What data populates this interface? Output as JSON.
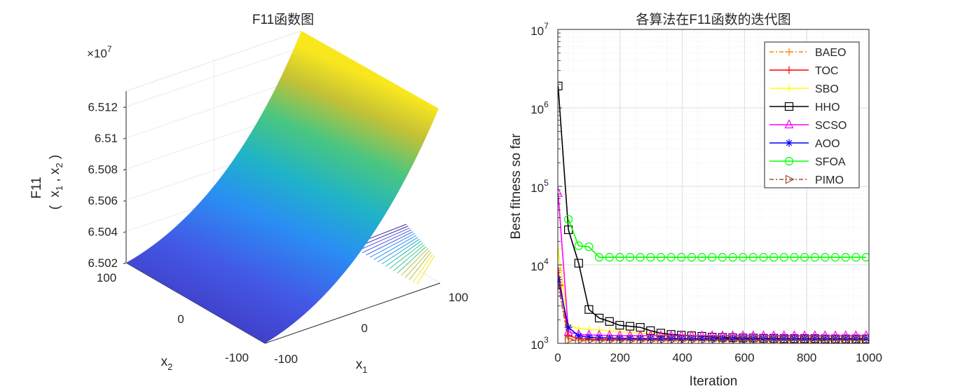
{
  "chart_data": [
    {
      "type": "surface",
      "title": "F11函数图",
      "xlabel": "x",
      "xlabel_sub": "1",
      "ylabel": "x",
      "ylabel_sub": "2",
      "zlabel_line1": "F11",
      "zlabel_line2": "( x , x )",
      "zlabel_sub1": "1",
      "zlabel_sub2": "2",
      "exponent_label": "×10",
      "exponent_power": "7",
      "x_ticks": [
        "-100",
        "0",
        "100"
      ],
      "y_ticks": [
        "-100",
        "0",
        "100"
      ],
      "z_ticks": [
        "6.502",
        "6.504",
        "6.506",
        "6.508",
        "6.51",
        "6.512"
      ],
      "xlim": [
        -100,
        100
      ],
      "ylim": [
        -100,
        100
      ],
      "zlim": [
        6.502,
        6.513
      ],
      "colormap": [
        "#3e26a8",
        "#4356e4",
        "#2d8ff5",
        "#1fb5c4",
        "#3ec78b",
        "#b8c03a",
        "#f9e41f"
      ],
      "contour_on_base": true
    },
    {
      "type": "line",
      "title": "各算法在F11函数的迭代图",
      "xlabel": "Iteration",
      "ylabel": "Best fitness so far",
      "xlim": [
        0,
        1000
      ],
      "ylim": [
        1000,
        10000000
      ],
      "yscale": "log",
      "grid": true,
      "legend_position": "top-right",
      "x_ticks": [
        "0",
        "200",
        "400",
        "600",
        "800",
        "1000"
      ],
      "y_ticks": [
        {
          "base": "10",
          "exp": "3"
        },
        {
          "base": "10",
          "exp": "4"
        },
        {
          "base": "10",
          "exp": "5"
        },
        {
          "base": "10",
          "exp": "6"
        },
        {
          "base": "10",
          "exp": "7"
        }
      ],
      "x": [
        1,
        34,
        67,
        100,
        133,
        166,
        199,
        232,
        265,
        298,
        331,
        364,
        397,
        430,
        463,
        496,
        529,
        562,
        595,
        628,
        661,
        694,
        727,
        760,
        793,
        826,
        859,
        892,
        925,
        958,
        991
      ],
      "series": [
        {
          "name": "BAEO",
          "color": "#ff8000",
          "marker": "plus",
          "dash": "6,3,2,3",
          "values": [
            6000,
            1150,
            1100,
            1100,
            1100,
            1100,
            1100,
            1100,
            1100,
            1100,
            1100,
            1100,
            1100,
            1100,
            1100,
            1100,
            1100,
            1100,
            1100,
            1100,
            1100,
            1100,
            1100,
            1100,
            1100,
            1100,
            1100,
            1100,
            1100,
            1100,
            1100
          ]
        },
        {
          "name": "TOC",
          "color": "#ff0000",
          "marker": "plus",
          "dash": "",
          "values": [
            8500,
            1250,
            1150,
            1130,
            1120,
            1120,
            1120,
            1120,
            1120,
            1120,
            1120,
            1120,
            1120,
            1120,
            1120,
            1120,
            1120,
            1120,
            1120,
            1120,
            1120,
            1120,
            1120,
            1120,
            1120,
            1120,
            1120,
            1120,
            1120,
            1120,
            1120
          ]
        },
        {
          "name": "SBO",
          "color": "#ffff00",
          "marker": "plus",
          "dash": "",
          "values": [
            16000,
            1700,
            1550,
            1500,
            1480,
            1450,
            1400,
            1380,
            1350,
            1330,
            1300,
            1290,
            1280,
            1270,
            1260,
            1250,
            1240,
            1240,
            1230,
            1230,
            1230,
            1220,
            1220,
            1220,
            1220,
            1210,
            1210,
            1210,
            1210,
            1210,
            1200
          ]
        },
        {
          "name": "HHO",
          "color": "#000000",
          "marker": "square",
          "dash": "",
          "values": [
            1900000,
            28000,
            10500,
            2700,
            2100,
            1900,
            1700,
            1650,
            1600,
            1450,
            1350,
            1300,
            1270,
            1250,
            1230,
            1200,
            1190,
            1180,
            1170,
            1170,
            1160,
            1160,
            1150,
            1150,
            1150,
            1150,
            1140,
            1140,
            1140,
            1140,
            1140
          ]
        },
        {
          "name": "SCSO",
          "color": "#ff00ff",
          "marker": "triangle",
          "dash": "",
          "values": [
            82000,
            1400,
            1300,
            1280,
            1270,
            1260,
            1250,
            1250,
            1250,
            1250,
            1250,
            1250,
            1250,
            1250,
            1250,
            1250,
            1250,
            1250,
            1250,
            1250,
            1250,
            1250,
            1250,
            1250,
            1250,
            1250,
            1250,
            1250,
            1250,
            1250,
            1250
          ]
        },
        {
          "name": "AOO",
          "color": "#0000ff",
          "marker": "star",
          "dash": "",
          "values": [
            6500,
            1600,
            1250,
            1200,
            1180,
            1170,
            1160,
            1160,
            1150,
            1150,
            1150,
            1150,
            1150,
            1150,
            1150,
            1150,
            1150,
            1150,
            1150,
            1150,
            1150,
            1150,
            1150,
            1150,
            1150,
            1150,
            1150,
            1150,
            1150,
            1150,
            1150
          ]
        },
        {
          "name": "SFOA",
          "color": "#00ff00",
          "marker": "circle",
          "dash": "",
          "values": [
            null,
            38000,
            17500,
            17000,
            12500,
            12500,
            12500,
            12500,
            12500,
            12500,
            12500,
            12500,
            12500,
            12500,
            12500,
            12500,
            12500,
            12500,
            12500,
            12500,
            12500,
            12500,
            12500,
            12500,
            12500,
            12500,
            12500,
            12500,
            12500,
            12500,
            12500
          ]
        },
        {
          "name": "PIMO",
          "color": "#a0522d",
          "marker": "triangle-right",
          "dash": "6,3,2,3",
          "values": [
            5500,
            1100,
            1080,
            1080,
            1080,
            1080,
            1080,
            1080,
            1080,
            1080,
            1080,
            1080,
            1080,
            1080,
            1080,
            1080,
            1080,
            1080,
            1080,
            1080,
            1080,
            1080,
            1080,
            1080,
            1080,
            1080,
            1080,
            1080,
            1080,
            1080,
            1080
          ]
        }
      ]
    }
  ]
}
